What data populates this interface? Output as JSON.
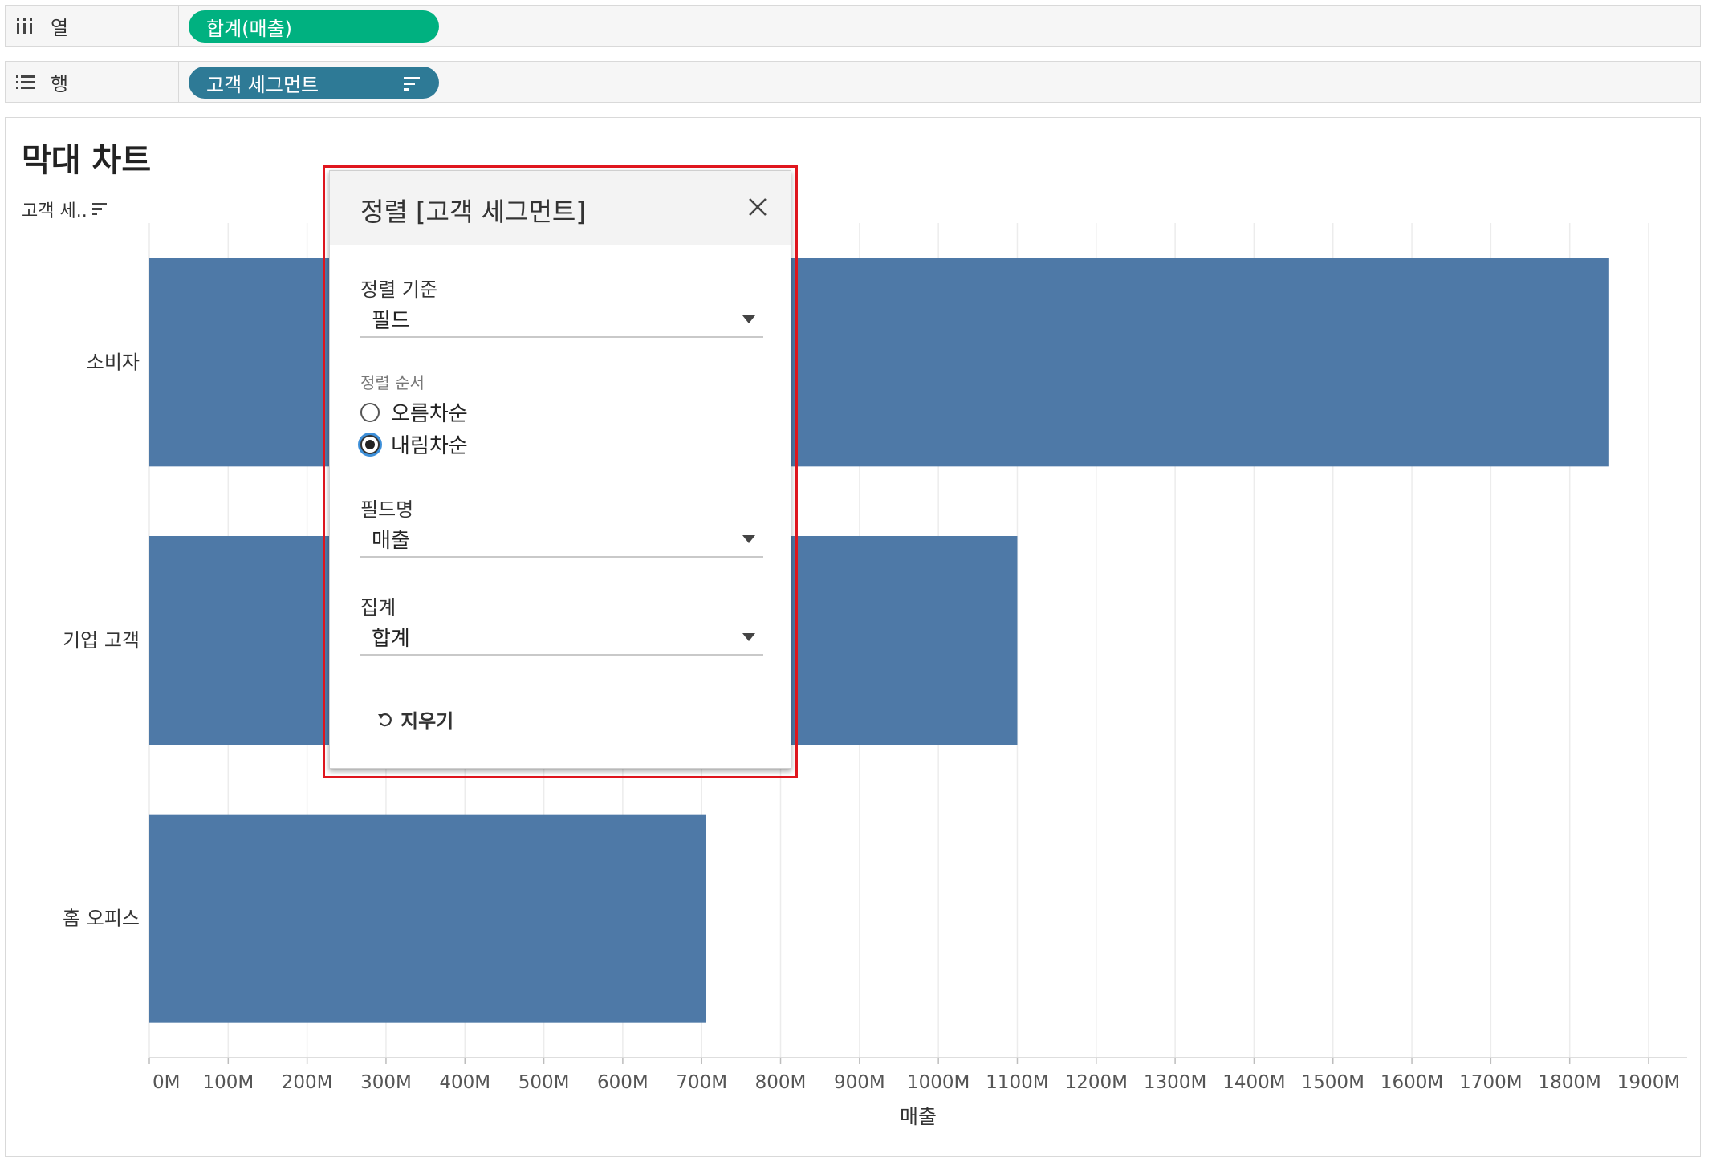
{
  "shelves": {
    "columns": {
      "label": "열",
      "pill": "합계(매출)"
    },
    "rows": {
      "label": "행",
      "pill": "고객 세그먼트"
    }
  },
  "sheet": {
    "title": "막대 차트",
    "dimension_header": "고객 세.."
  },
  "colors": {
    "bar": "#4e79a7",
    "pill_green": "#00b180",
    "pill_teal": "#2e7a96",
    "highlight": "#e0161e"
  },
  "dialog": {
    "title": "정렬 [고객 세그먼트]",
    "sort_by_label": "정렬 기준",
    "sort_by_value": "필드",
    "sort_order_label": "정렬 순서",
    "order_options": [
      "오름차순",
      "내림차순"
    ],
    "selected_order": "내림차순",
    "field_name_label": "필드명",
    "field_name_value": "매출",
    "aggregation_label": "집계",
    "aggregation_value": "합계",
    "clear_label": "지우기"
  },
  "chart_data": {
    "type": "bar",
    "orientation": "horizontal",
    "categories": [
      "소비자",
      "기업 고객",
      "홈 오피스"
    ],
    "values": [
      1850,
      1100,
      705
    ],
    "unit": "M",
    "xlabel": "매출",
    "xlim": [
      0,
      1950
    ],
    "ticks": [
      0,
      100,
      200,
      300,
      400,
      500,
      600,
      700,
      800,
      900,
      1000,
      1100,
      1200,
      1300,
      1400,
      1500,
      1600,
      1700,
      1800,
      1900
    ],
    "tick_labels": [
      "0M",
      "100M",
      "200M",
      "300M",
      "400M",
      "500M",
      "600M",
      "700M",
      "800M",
      "900M",
      "1000M",
      "1100M",
      "1200M",
      "1300M",
      "1400M",
      "1500M",
      "1600M",
      "1700M",
      "1800M",
      "1900M"
    ],
    "grid": true
  }
}
